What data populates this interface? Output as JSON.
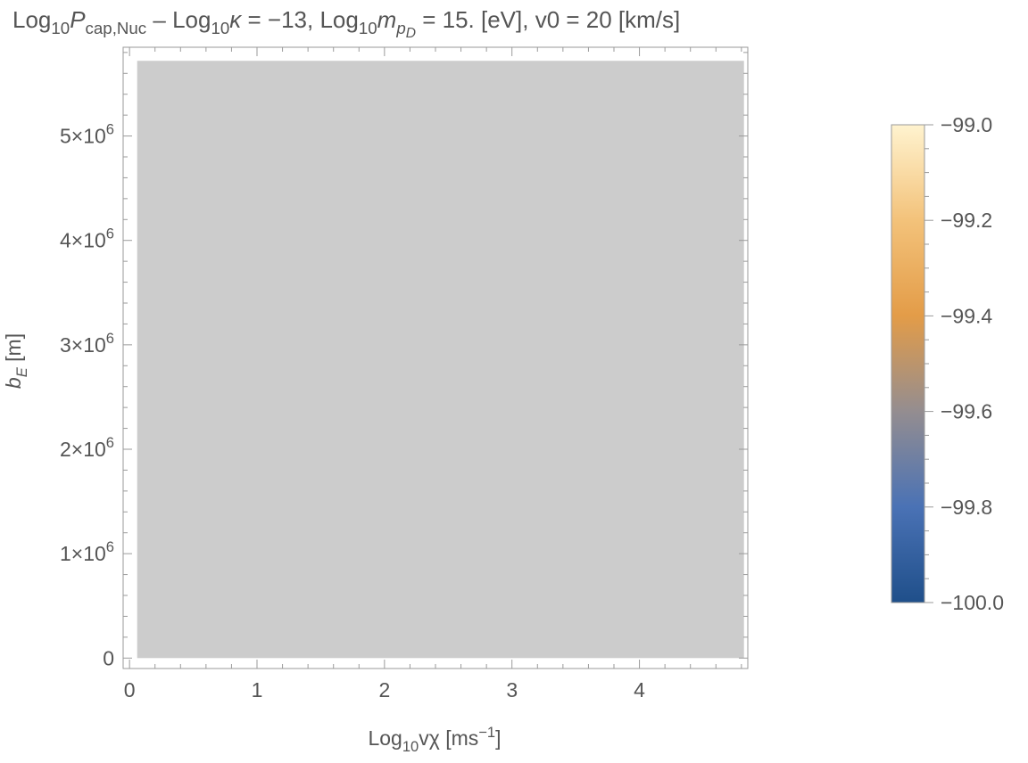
{
  "chart_data": {
    "type": "heatmap",
    "title": {
      "segments": [
        {
          "t": "Log"
        },
        {
          "t": "10",
          "sub": true
        },
        {
          "t": "P",
          "italic": true
        },
        {
          "t": "cap,Nuc",
          "sub": true
        },
        {
          "t": " – Log"
        },
        {
          "t": "10",
          "sub": true
        },
        {
          "t": "κ",
          "italic": true
        },
        {
          "t": " = −13, Log"
        },
        {
          "t": "10",
          "sub": true
        },
        {
          "t": "m",
          "italic": true
        },
        {
          "t": "p",
          "sub": true,
          "italic": true
        },
        {
          "t": "D",
          "subsub": true,
          "italic": true
        },
        {
          "t": " = 15. [eV], v0 = 20 [km/s]"
        }
      ]
    },
    "xlabel": {
      "segments": [
        {
          "t": "Log"
        },
        {
          "t": "10",
          "sub": true
        },
        {
          "t": "vχ [ms"
        },
        {
          "t": "−1",
          "sup": true
        },
        {
          "t": "]"
        }
      ]
    },
    "ylabel": {
      "segments": [
        {
          "t": "b",
          "italic": true
        },
        {
          "t": "E",
          "sub": true,
          "italic": true
        },
        {
          "t": " [m]"
        }
      ]
    },
    "xlim": [
      -0.05,
      4.85
    ],
    "ylim": [
      -100000,
      5850000
    ],
    "x_ticks": [
      {
        "value": 0,
        "label": "0"
      },
      {
        "value": 1,
        "label": "1"
      },
      {
        "value": 2,
        "label": "2"
      },
      {
        "value": 3,
        "label": "3"
      },
      {
        "value": 4,
        "label": "4"
      }
    ],
    "y_ticks": [
      {
        "value": 0,
        "label": "0"
      },
      {
        "value": 1000000,
        "mant": "1",
        "exp": "6"
      },
      {
        "value": 2000000,
        "mant": "2",
        "exp": "6"
      },
      {
        "value": 3000000,
        "mant": "3",
        "exp": "6"
      },
      {
        "value": 4000000,
        "mant": "4",
        "exp": "6"
      },
      {
        "value": 5000000,
        "mant": "5",
        "exp": "6"
      }
    ],
    "data_region": {
      "x": [
        0.06,
        4.82
      ],
      "y": [
        0,
        5720000
      ],
      "fill": "#cccccc"
    },
    "colorbar": {
      "min": -100.0,
      "max": -99.0,
      "ticks": [
        "−99.0",
        "−99.2",
        "−99.4",
        "−99.6",
        "−99.8",
        "−100.0"
      ],
      "tick_values": [
        -99.0,
        -99.2,
        -99.4,
        -99.6,
        -99.8,
        -100.0
      ],
      "gradient_stops": [
        "#1f4f8a",
        "#4a72b5",
        "#948d90",
        "#e39c48",
        "#f3c27a",
        "#fff3cf"
      ]
    }
  }
}
